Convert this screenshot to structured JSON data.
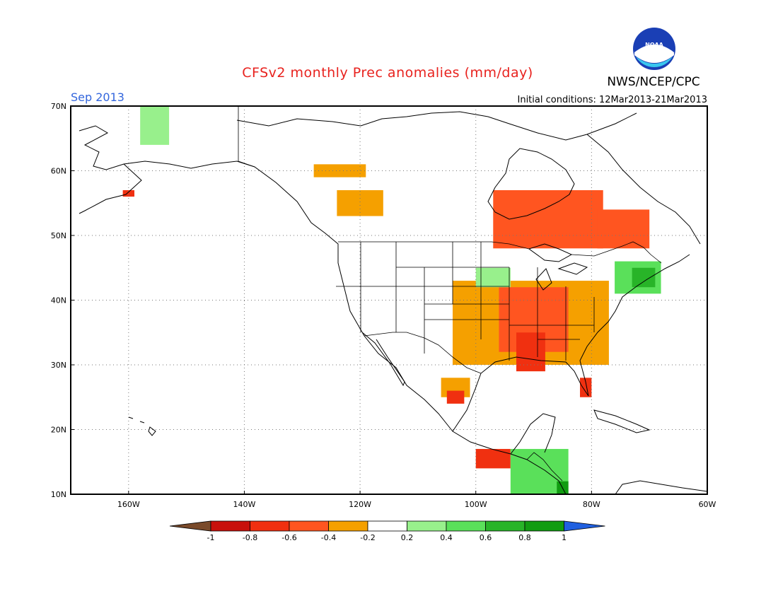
{
  "header": {
    "title": "CFSv2 monthly Prec anomalies (mm/day)",
    "org": "NWS/NCEP/CPC",
    "logo_text": "NOAA",
    "month": "Sep 2013",
    "initial_conditions": "Initial conditions: 12Mar2013-21Mar2013"
  },
  "map": {
    "lat_labels": [
      "70N",
      "60N",
      "50N",
      "40N",
      "30N",
      "20N",
      "10N"
    ],
    "lon_labels": [
      "160W",
      "140W",
      "120W",
      "100W",
      "80W",
      "60W"
    ],
    "lat_range": [
      10,
      70
    ],
    "lon_range": [
      -170,
      -60
    ],
    "grid": true,
    "projection": "lat-lon"
  },
  "legend": {
    "ticks": [
      "-1",
      "-0.8",
      "-0.6",
      "-0.4",
      "-0.2",
      "0.2",
      "0.4",
      "0.6",
      "0.8",
      "1"
    ],
    "colors": [
      "#7a4a2a",
      "#c8100c",
      "#f03010",
      "#ff5520",
      "#f5a000",
      "#ffffff",
      "#98f08c",
      "#5ae05a",
      "#28b428",
      "#119c11",
      "#2060e0"
    ]
  },
  "chart_data": {
    "type": "heatmap",
    "title": "CFSv2 monthly Prec anomalies (mm/day)",
    "units": "mm/day",
    "month": "Sep 2013",
    "levels": [
      -1,
      -0.8,
      -0.6,
      -0.4,
      -0.2,
      0.2,
      0.4,
      0.6,
      0.8,
      1
    ],
    "regions": [
      {
        "lon": [
          -96,
          -82
        ],
        "lat": [
          50,
          55
        ],
        "value": -0.7
      },
      {
        "lon": [
          -97,
          -78
        ],
        "lat": [
          48,
          57
        ],
        "value": -0.4
      },
      {
        "lon": [
          -79,
          -70
        ],
        "lat": [
          48,
          54
        ],
        "value": -0.45
      },
      {
        "lon": [
          -128,
          -119
        ],
        "lat": [
          59,
          61
        ],
        "value": -0.3
      },
      {
        "lon": [
          -124,
          -116
        ],
        "lat": [
          53,
          57
        ],
        "value": -0.3
      },
      {
        "lon": [
          -104,
          -77
        ],
        "lat": [
          30,
          43
        ],
        "value": -0.3
      },
      {
        "lon": [
          -96,
          -84
        ],
        "lat": [
          32,
          42
        ],
        "value": -0.55
      },
      {
        "lon": [
          -93,
          -88
        ],
        "lat": [
          29,
          35
        ],
        "value": -0.7
      },
      {
        "lon": [
          -106,
          -101
        ],
        "lat": [
          25,
          28
        ],
        "value": -0.35
      },
      {
        "lon": [
          -105,
          -102
        ],
        "lat": [
          24,
          26
        ],
        "value": -0.7
      },
      {
        "lon": [
          -100,
          -94
        ],
        "lat": [
          14,
          17
        ],
        "value": -0.6
      },
      {
        "lon": [
          -82,
          -80
        ],
        "lat": [
          25,
          28
        ],
        "value": -0.6
      },
      {
        "lon": [
          -76,
          -68
        ],
        "lat": [
          41,
          46
        ],
        "value": 0.5
      },
      {
        "lon": [
          -73,
          -69
        ],
        "lat": [
          42,
          45
        ],
        "value": 0.75
      },
      {
        "lon": [
          -100,
          -94
        ],
        "lat": [
          42,
          45
        ],
        "value": 0.3
      },
      {
        "lon": [
          -158,
          -153
        ],
        "lat": [
          64,
          70
        ],
        "value": 0.3
      },
      {
        "lon": [
          -94,
          -84
        ],
        "lat": [
          10,
          17
        ],
        "value": 0.55
      },
      {
        "lon": [
          -86,
          -84
        ],
        "lat": [
          10,
          12
        ],
        "value": 1.0
      },
      {
        "lon": [
          -161,
          -159
        ],
        "lat": [
          56,
          57
        ],
        "value": -0.7
      }
    ]
  }
}
